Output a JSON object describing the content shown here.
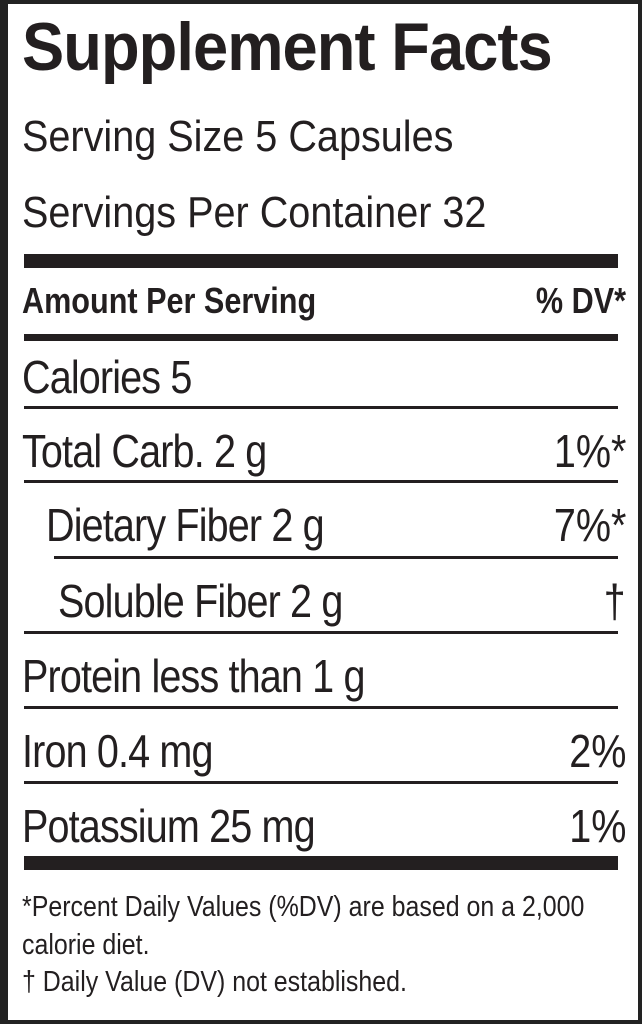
{
  "header": {
    "title": "Supplement Facts",
    "serving_size": "Serving Size 5 Capsules",
    "servings_per_container": "Servings Per Container 32"
  },
  "table": {
    "header": {
      "amount": "Amount Per Serving",
      "dv": "% DV*"
    },
    "rows": [
      {
        "nutrient": "Calories 5"
      },
      {
        "nutrient": "Total Carb. 2 g",
        "dv": "1%*"
      },
      {
        "nutrient": "Dietary Fiber 2 g",
        "dv": "7%*"
      },
      {
        "nutrient": "Soluble Fiber 2 g",
        "dv": "†"
      },
      {
        "nutrient": "Protein less than 1 g"
      },
      {
        "nutrient": "Iron 0.4 mg",
        "dv": "2%"
      },
      {
        "nutrient": "Potassium 25 mg",
        "dv": "1%"
      }
    ]
  },
  "footnotes": [
    "*Percent Daily Values (%DV) are based on a 2,000 calorie diet.",
    "† Daily Value (DV) not established."
  ]
}
